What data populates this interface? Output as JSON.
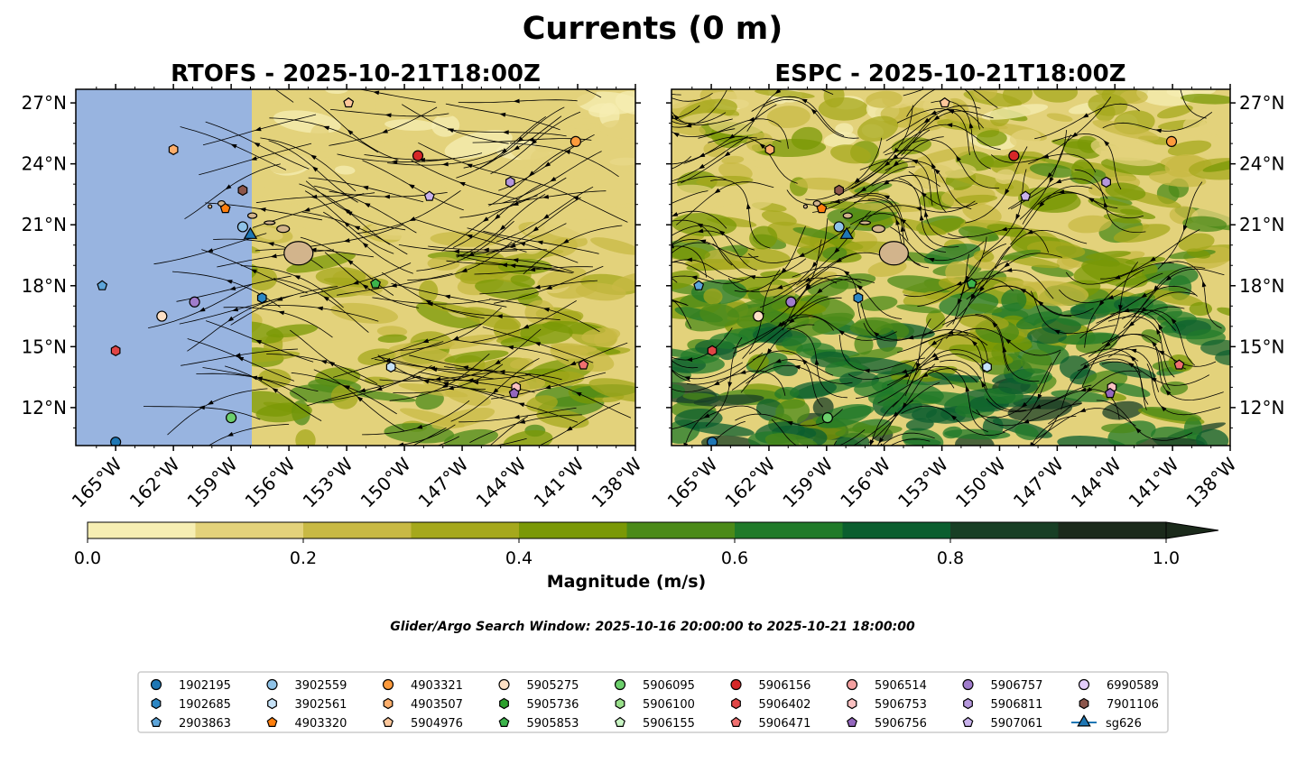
{
  "figure": {
    "title": "Currents (0 m)",
    "search_window": "Glider/Argo Search Window: 2025-10-16 20:00:00 to 2025-10-21 18:00:00"
  },
  "panels": [
    {
      "title": "RTOFS - 2025-10-21T18:00Z",
      "model": "RTOFS"
    },
    {
      "title": "ESPC - 2025-10-21T18:00Z",
      "model": "ESPC"
    }
  ],
  "axes": {
    "lat_ticks": [
      27,
      24,
      21,
      18,
      15,
      12
    ],
    "lat_labels": [
      "27°N",
      "24°N",
      "21°N",
      "18°N",
      "15°N",
      "12°N"
    ],
    "lon_ticks": [
      -165,
      -162,
      -159,
      -156,
      -153,
      -150,
      -147,
      -144,
      -141,
      -138
    ],
    "lon_labels": [
      "165°W",
      "162°W",
      "159°W",
      "156°W",
      "153°W",
      "150°W",
      "147°W",
      "144°W",
      "141°W",
      "138°W"
    ],
    "lon_range": [
      -167.1,
      -138
    ],
    "lat_range": [
      10.1,
      27.7
    ]
  },
  "colorbar": {
    "label": "Magnitude (m/s)",
    "levels": [
      0,
      0.1,
      0.2,
      0.3,
      0.4,
      0.5,
      0.6,
      0.7,
      0.8,
      0.9,
      1.0
    ],
    "tick_values": [
      0,
      0.2,
      0.4,
      0.6,
      0.8,
      1.0
    ],
    "tick_labels": [
      "0.0",
      "0.2",
      "0.4",
      "0.6",
      "0.8",
      "1.0"
    ],
    "colors": [
      "#f6eeb3",
      "#e3d27b",
      "#c8b944",
      "#a5a81c",
      "#7a9806",
      "#4b8a18",
      "#207a29",
      "#0b5e2f",
      "#183f25",
      "#1b2a1b"
    ],
    "extend": "max"
  },
  "colors": {
    "land": "#d2b48c",
    "no_data": "#98b4e0"
  },
  "floats": [
    {
      "id": "1902195",
      "marker": "circle",
      "color": "#1f77b4",
      "lon": -165.0,
      "lat": 10.3
    },
    {
      "id": "1902685",
      "marker": "hexagon",
      "color": "#2b86c4",
      "lon": -157.4,
      "lat": 17.4
    },
    {
      "id": "2903863",
      "marker": "pentagon",
      "color": "#5da5da",
      "lon": -165.7,
      "lat": 18.0
    },
    {
      "id": "3902559",
      "marker": "circle",
      "color": "#8fc3e8",
      "lon": -158.4,
      "lat": 20.9
    },
    {
      "id": "3902561",
      "marker": "hexagon",
      "color": "#c6e2f7",
      "lon": -150.7,
      "lat": 14.0
    },
    {
      "id": "4903320",
      "marker": "pentagon",
      "color": "#ff7f0e",
      "lon": -159.3,
      "lat": 21.8
    },
    {
      "id": "4903321",
      "marker": "circle",
      "color": "#fd9a3c",
      "lon": -141.1,
      "lat": 25.1
    },
    {
      "id": "4903507",
      "marker": "hexagon",
      "color": "#fdae6b",
      "lon": -162.0,
      "lat": 24.7
    },
    {
      "id": "5904976",
      "marker": "pentagon",
      "color": "#fdc79b",
      "lon": -152.9,
      "lat": 27.0
    },
    {
      "id": "5905275",
      "marker": "circle",
      "color": "#fde0c5",
      "lon": -162.6,
      "lat": 16.5
    },
    {
      "id": "5905736",
      "marker": "hexagon",
      "color": "#2ca02c",
      "lon": null,
      "lat": null
    },
    {
      "id": "5905853",
      "marker": "pentagon",
      "color": "#3cb44b",
      "lon": -151.5,
      "lat": 18.1
    },
    {
      "id": "5906095",
      "marker": "circle",
      "color": "#6ccf6c",
      "lon": -159.0,
      "lat": 11.5
    },
    {
      "id": "5906100",
      "marker": "hexagon",
      "color": "#98df8a",
      "lon": null,
      "lat": null
    },
    {
      "id": "5906155",
      "marker": "pentagon",
      "color": "#c9f5c4",
      "lon": null,
      "lat": null
    },
    {
      "id": "5906156",
      "marker": "circle",
      "color": "#d62728",
      "lon": -149.3,
      "lat": 24.4
    },
    {
      "id": "5906402",
      "marker": "hexagon",
      "color": "#e04545",
      "lon": -165.0,
      "lat": 14.8
    },
    {
      "id": "5906471",
      "marker": "pentagon",
      "color": "#f07070",
      "lon": -140.7,
      "lat": 14.1
    },
    {
      "id": "5906514",
      "marker": "circle",
      "color": "#f4a0a0",
      "lon": null,
      "lat": null
    },
    {
      "id": "5906753",
      "marker": "hexagon",
      "color": "#fbc1c1",
      "lon": -144.2,
      "lat": 13.0
    },
    {
      "id": "5906756",
      "marker": "pentagon",
      "color": "#9467bd",
      "lon": -144.3,
      "lat": 12.7
    },
    {
      "id": "5906757",
      "marker": "circle",
      "color": "#a07ccc",
      "lon": -160.9,
      "lat": 17.2
    },
    {
      "id": "5906811",
      "marker": "hexagon",
      "color": "#b597dc",
      "lon": -144.5,
      "lat": 23.1
    },
    {
      "id": "5907061",
      "marker": "pentagon",
      "color": "#c9b2ec",
      "lon": -148.7,
      "lat": 22.4
    },
    {
      "id": "6990589",
      "marker": "circle",
      "color": "#e3cdfb",
      "lon": null,
      "lat": null
    },
    {
      "id": "7901106",
      "marker": "hexagon",
      "color": "#8c564b",
      "lon": -158.4,
      "lat": 22.7
    },
    {
      "id": "sg626",
      "marker": "triangle",
      "color": "#1f77b4",
      "lon": -158.0,
      "lat": 20.5
    }
  ]
}
